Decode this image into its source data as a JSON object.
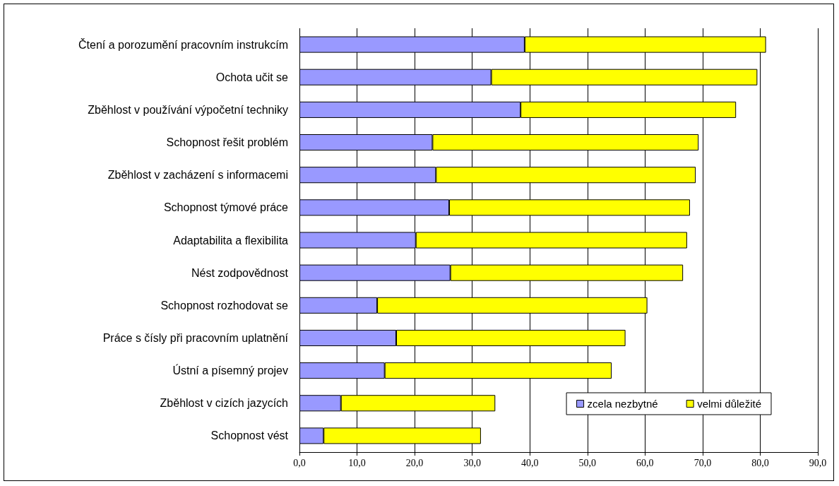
{
  "chart_data": {
    "type": "bar",
    "orientation": "horizontal",
    "stacked": true,
    "categories": [
      "Čtení a porozumění pracovním instrukcím",
      "Ochota učit se",
      "Zběhlost v používání výpočetní techniky",
      "Schopnost řešit problém",
      "Zběhlost v zacházení s informacemi",
      "Schopnost týmové práce",
      "Adaptabilita a flexibilita",
      "Nést zodpovědnost",
      "Schopnost rozhodovat se",
      "Práce s čísly při pracovním uplatnění",
      "Ústní a písemný projev",
      "Zběhlost v cizích jazycích",
      "Schopnost vést"
    ],
    "series": [
      {
        "name": "zcela nezbytné",
        "color": "#9999ff",
        "values": [
          39.1,
          33.3,
          38.4,
          23.1,
          23.7,
          26.0,
          20.2,
          26.2,
          13.5,
          16.8,
          14.8,
          7.2,
          4.2
        ]
      },
      {
        "name": "velmi důležité",
        "color": "#ffff00",
        "values": [
          41.9,
          46.2,
          37.4,
          46.2,
          45.1,
          41.8,
          47.1,
          40.4,
          46.9,
          39.8,
          39.4,
          26.8,
          27.3
        ]
      }
    ],
    "xlim": [
      0,
      90
    ],
    "xticks": [
      {
        "value": 0,
        "label": "0,0"
      },
      {
        "value": 10,
        "label": "10,0"
      },
      {
        "value": 20,
        "label": "20,0"
      },
      {
        "value": 30,
        "label": "30,0"
      },
      {
        "value": 40,
        "label": "40,0"
      },
      {
        "value": 50,
        "label": "50,0"
      },
      {
        "value": 60,
        "label": "60,0"
      },
      {
        "value": 70,
        "label": "70,0"
      },
      {
        "value": 80,
        "label": "80,0"
      },
      {
        "value": 90,
        "label": "90,0"
      }
    ],
    "grid": "x",
    "legend": "bottom right"
  }
}
